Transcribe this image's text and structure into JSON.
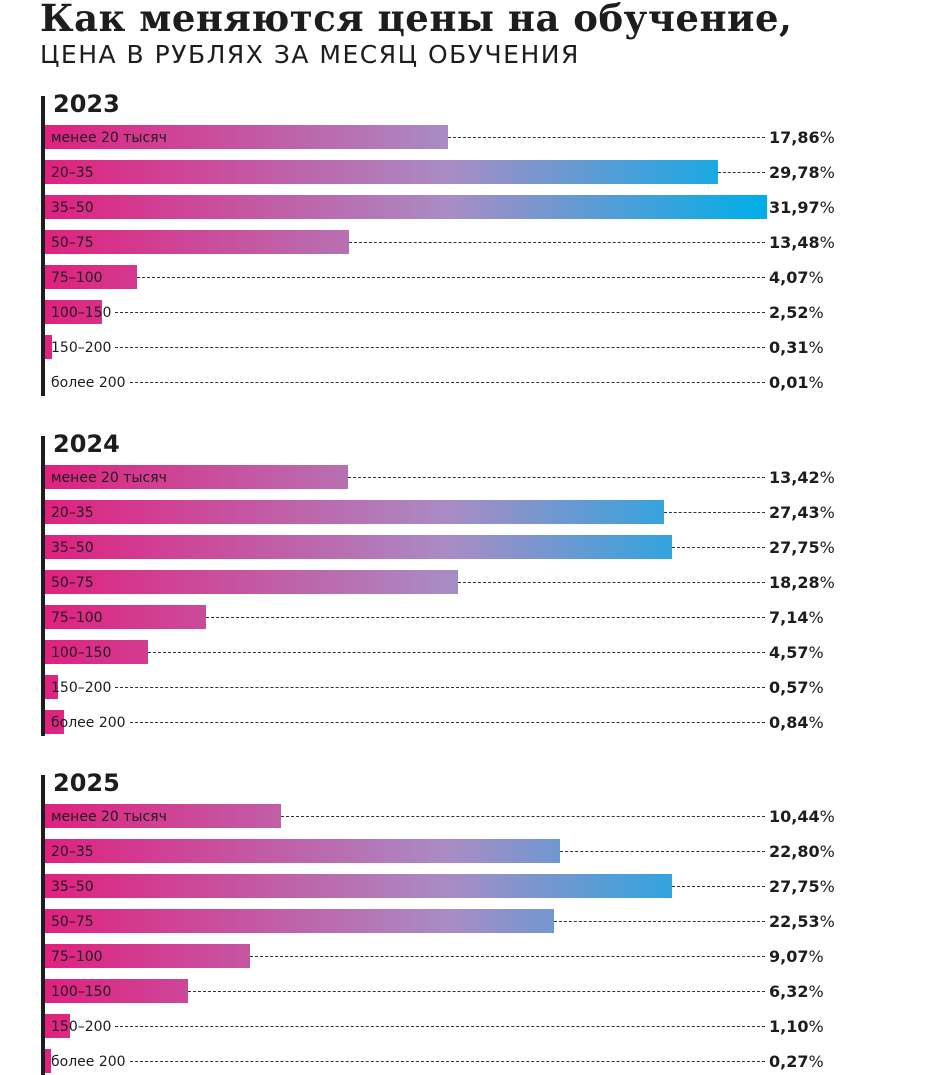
{
  "title": "Как меняются цены на обучение,",
  "subtitle": "ЦЕНА В РУБЛЯХ ЗА МЕСЯЦ ОБУЧЕНИЯ",
  "colors": {
    "bar_start": "#e0217f",
    "bar_mid": "#a98cc4",
    "bar_end": "#00aee8",
    "axis": "#1d1d1d"
  },
  "chart_data": [
    {
      "type": "bar",
      "title": "2023",
      "categories": [
        "менее 20 тысяч",
        "20–35",
        "35–50",
        "50–75",
        "75–100",
        "100–150",
        "150–200",
        "более 200"
      ],
      "values": [
        17.86,
        29.78,
        31.97,
        13.48,
        4.07,
        2.52,
        0.31,
        0.01
      ],
      "value_labels": [
        "17,86",
        "29,78",
        "31,97",
        "13,48",
        "4,07",
        "2,52",
        "0,31",
        "0,01"
      ],
      "unit": "%"
    },
    {
      "type": "bar",
      "title": "2024",
      "categories": [
        "менее 20 тысяч",
        "20–35",
        "35–50",
        "50–75",
        "75–100",
        "100–150",
        "150–200",
        "более 200"
      ],
      "values": [
        13.42,
        27.43,
        27.75,
        18.28,
        7.14,
        4.57,
        0.57,
        0.84
      ],
      "value_labels": [
        "13,42",
        "27,43",
        "27,75",
        "18,28",
        "7,14",
        "4,57",
        "0,57",
        "0,84"
      ],
      "unit": "%"
    },
    {
      "type": "bar",
      "title": "2025",
      "categories": [
        "менее 20 тысяч",
        "20–35",
        "35–50",
        "50–75",
        "75–100",
        "100–150",
        "150–200",
        "более 200"
      ],
      "values": [
        10.44,
        22.8,
        27.75,
        22.53,
        9.07,
        6.32,
        1.1,
        0.27
      ],
      "value_labels": [
        "10,44",
        "22,80",
        "27,75",
        "22,53",
        "9,07",
        "6,32",
        "1,10",
        "0,27"
      ],
      "unit": "%"
    }
  ]
}
